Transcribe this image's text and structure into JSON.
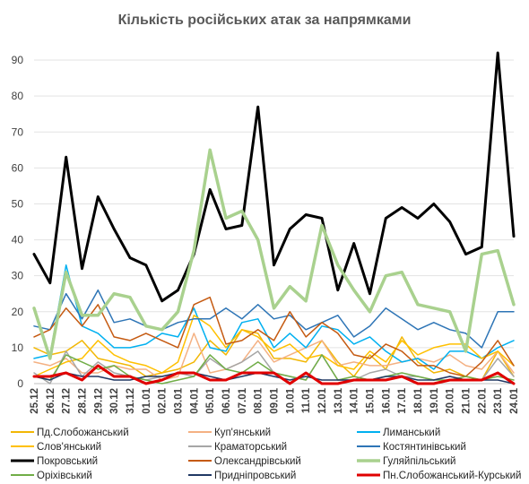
{
  "chart_data": {
    "type": "line",
    "title": "Кількість російських атак за напрямками",
    "xlabel": "",
    "ylabel": "",
    "ylim": [
      0,
      95
    ],
    "yticks": [
      0,
      10,
      20,
      30,
      40,
      50,
      60,
      70,
      80,
      90
    ],
    "grid": "horizontal",
    "legend_position": "bottom",
    "categories": [
      "25.12",
      "26.12",
      "27.12",
      "28.12",
      "29.12",
      "30.12",
      "31.12",
      "01.01",
      "02.01",
      "03.01",
      "04.01",
      "05.01",
      "06.01",
      "07.01",
      "08.01",
      "09.01",
      "10.01",
      "11.01",
      "12.01",
      "13.01",
      "14.01",
      "15.01",
      "16.01",
      "17.01",
      "18.01",
      "19.01",
      "20.01",
      "21.01",
      "22.01",
      "23.01",
      "24.01"
    ],
    "series": [
      {
        "name": "Пд.Слобожанський",
        "color": "#F2B705",
        "values": [
          10,
          8,
          9,
          12,
          7,
          6,
          5,
          2,
          3,
          4,
          6,
          12,
          8,
          15,
          14,
          7,
          7,
          6,
          12,
          6,
          2,
          8,
          4,
          13,
          6,
          3,
          4,
          2,
          1,
          9,
          2
        ]
      },
      {
        "name": "Куп'янський",
        "color": "#F4B183",
        "values": [
          6,
          5,
          7,
          3,
          3,
          5,
          4,
          4,
          1,
          2,
          14,
          3,
          4,
          6,
          12,
          6,
          8,
          10,
          12,
          5,
          6,
          5,
          5,
          6,
          7,
          6,
          8,
          5,
          4,
          9,
          3
        ]
      },
      {
        "name": "Лиманський",
        "color": "#00B0F0",
        "values": [
          7,
          8,
          33,
          16,
          14,
          10,
          10,
          11,
          14,
          13,
          21,
          10,
          9,
          17,
          18,
          10,
          14,
          10,
          16,
          15,
          11,
          13,
          9,
          6,
          7,
          4,
          9,
          9,
          7,
          10,
          12
        ]
      },
      {
        "name": "Слов'янський",
        "color": "#FFC000",
        "values": [
          2,
          4,
          6,
          7,
          12,
          8,
          6,
          5,
          3,
          6,
          19,
          16,
          10,
          15,
          13,
          9,
          11,
          7,
          8,
          5,
          4,
          9,
          6,
          12,
          8,
          10,
          11,
          11,
          7,
          9,
          5
        ]
      },
      {
        "name": "Краматорський",
        "color": "#A6A6A6",
        "values": [
          3,
          0,
          9,
          2,
          6,
          3,
          2,
          1,
          2,
          3,
          2,
          7,
          4,
          6,
          9,
          3,
          2,
          1,
          8,
          1,
          1,
          3,
          4,
          2,
          2,
          1,
          2,
          1,
          1,
          7,
          2
        ]
      },
      {
        "name": "Костянтинівський",
        "color": "#2E75B6",
        "values": [
          16,
          15,
          25,
          18,
          26,
          17,
          18,
          16,
          15,
          17,
          18,
          18,
          21,
          18,
          22,
          18,
          19,
          15,
          17,
          19,
          13,
          16,
          21,
          18,
          15,
          17,
          15,
          14,
          10,
          20,
          20
        ]
      },
      {
        "name": "Покровський",
        "color": "#000000",
        "values": [
          36,
          28,
          63,
          32,
          52,
          43,
          35,
          33,
          23,
          26,
          36,
          54,
          43,
          44,
          77,
          33,
          43,
          47,
          46,
          26,
          39,
          25,
          46,
          49,
          46,
          50,
          45,
          36,
          38,
          92,
          41
        ]
      },
      {
        "name": "Олександрівський",
        "color": "#C55A11",
        "values": [
          13,
          15,
          21,
          16,
          22,
          13,
          12,
          14,
          12,
          10,
          22,
          24,
          11,
          12,
          15,
          12,
          20,
          13,
          17,
          14,
          8,
          7,
          11,
          9,
          5,
          5,
          3,
          2,
          6,
          12,
          5
        ]
      },
      {
        "name": "Гуляйпільський",
        "color": "#A9D18E",
        "values": [
          21,
          7,
          31,
          19,
          19,
          25,
          24,
          16,
          15,
          20,
          37,
          65,
          46,
          48,
          40,
          21,
          27,
          23,
          44,
          33,
          26,
          20,
          30,
          31,
          22,
          21,
          20,
          9,
          36,
          37,
          22
        ]
      },
      {
        "name": "Оріхівський",
        "color": "#70AD47",
        "values": [
          2,
          1,
          8,
          6,
          4,
          5,
          2,
          1,
          0,
          1,
          2,
          8,
          4,
          3,
          6,
          3,
          2,
          1,
          8,
          1,
          2,
          1,
          2,
          3,
          2,
          1,
          1,
          2,
          1,
          2,
          1
        ]
      },
      {
        "name": "Придніпровський",
        "color": "#203864",
        "values": [
          2,
          1,
          3,
          2,
          2,
          1,
          1,
          2,
          2,
          3,
          3,
          2,
          1,
          2,
          3,
          2,
          1,
          2,
          1,
          1,
          1,
          1,
          2,
          2,
          1,
          1,
          2,
          1,
          1,
          1,
          0
        ]
      },
      {
        "name": "Пн.Слобожанський-Курський",
        "color": "#E00000",
        "values": [
          2,
          2,
          3,
          1,
          5,
          2,
          2,
          0,
          1,
          3,
          3,
          1,
          1,
          3,
          3,
          3,
          0,
          3,
          0,
          0,
          1,
          1,
          1,
          2,
          0,
          0,
          1,
          1,
          1,
          3,
          0
        ]
      }
    ]
  }
}
